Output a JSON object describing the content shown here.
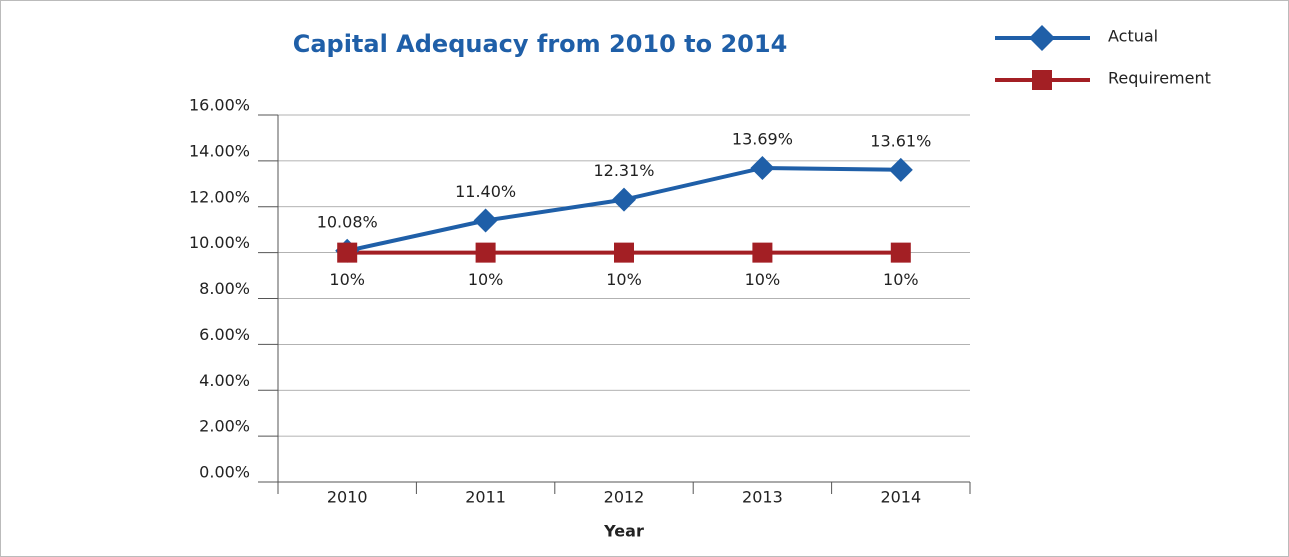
{
  "chart_data": {
    "type": "line",
    "title": "Capital Adequacy from 2010 to 2014",
    "xlabel": "Year",
    "categories": [
      "2010",
      "2011",
      "2012",
      "2013",
      "2014"
    ],
    "series": [
      {
        "name": "Actual",
        "color": "#1f5fa8",
        "marker": "diamond",
        "values": [
          10.08,
          11.4,
          12.31,
          13.69,
          13.61
        ],
        "value_labels": [
          "10.08%",
          "11.40%",
          "12.31%",
          "13.69%",
          "13.61%"
        ]
      },
      {
        "name": "Requirement",
        "color": "#a31f24",
        "marker": "square",
        "values": [
          10,
          10,
          10,
          10,
          10
        ],
        "value_labels": [
          "10%",
          "10%",
          "10%",
          "10%",
          "10%"
        ]
      }
    ],
    "ylim": [
      0,
      16
    ],
    "yticks": [
      {
        "value": 0,
        "label": "0.00%"
      },
      {
        "value": 2,
        "label": "2.00%"
      },
      {
        "value": 4,
        "label": "4.00%"
      },
      {
        "value": 6,
        "label": "6.00%"
      },
      {
        "value": 8,
        "label": "8.00%"
      },
      {
        "value": 10,
        "label": "10.00%"
      },
      {
        "value": 12,
        "label": "12.00%"
      },
      {
        "value": 14,
        "label": "14.00%"
      },
      {
        "value": 16,
        "label": "16.00%"
      }
    ],
    "grid": true,
    "legend": "top-right"
  }
}
